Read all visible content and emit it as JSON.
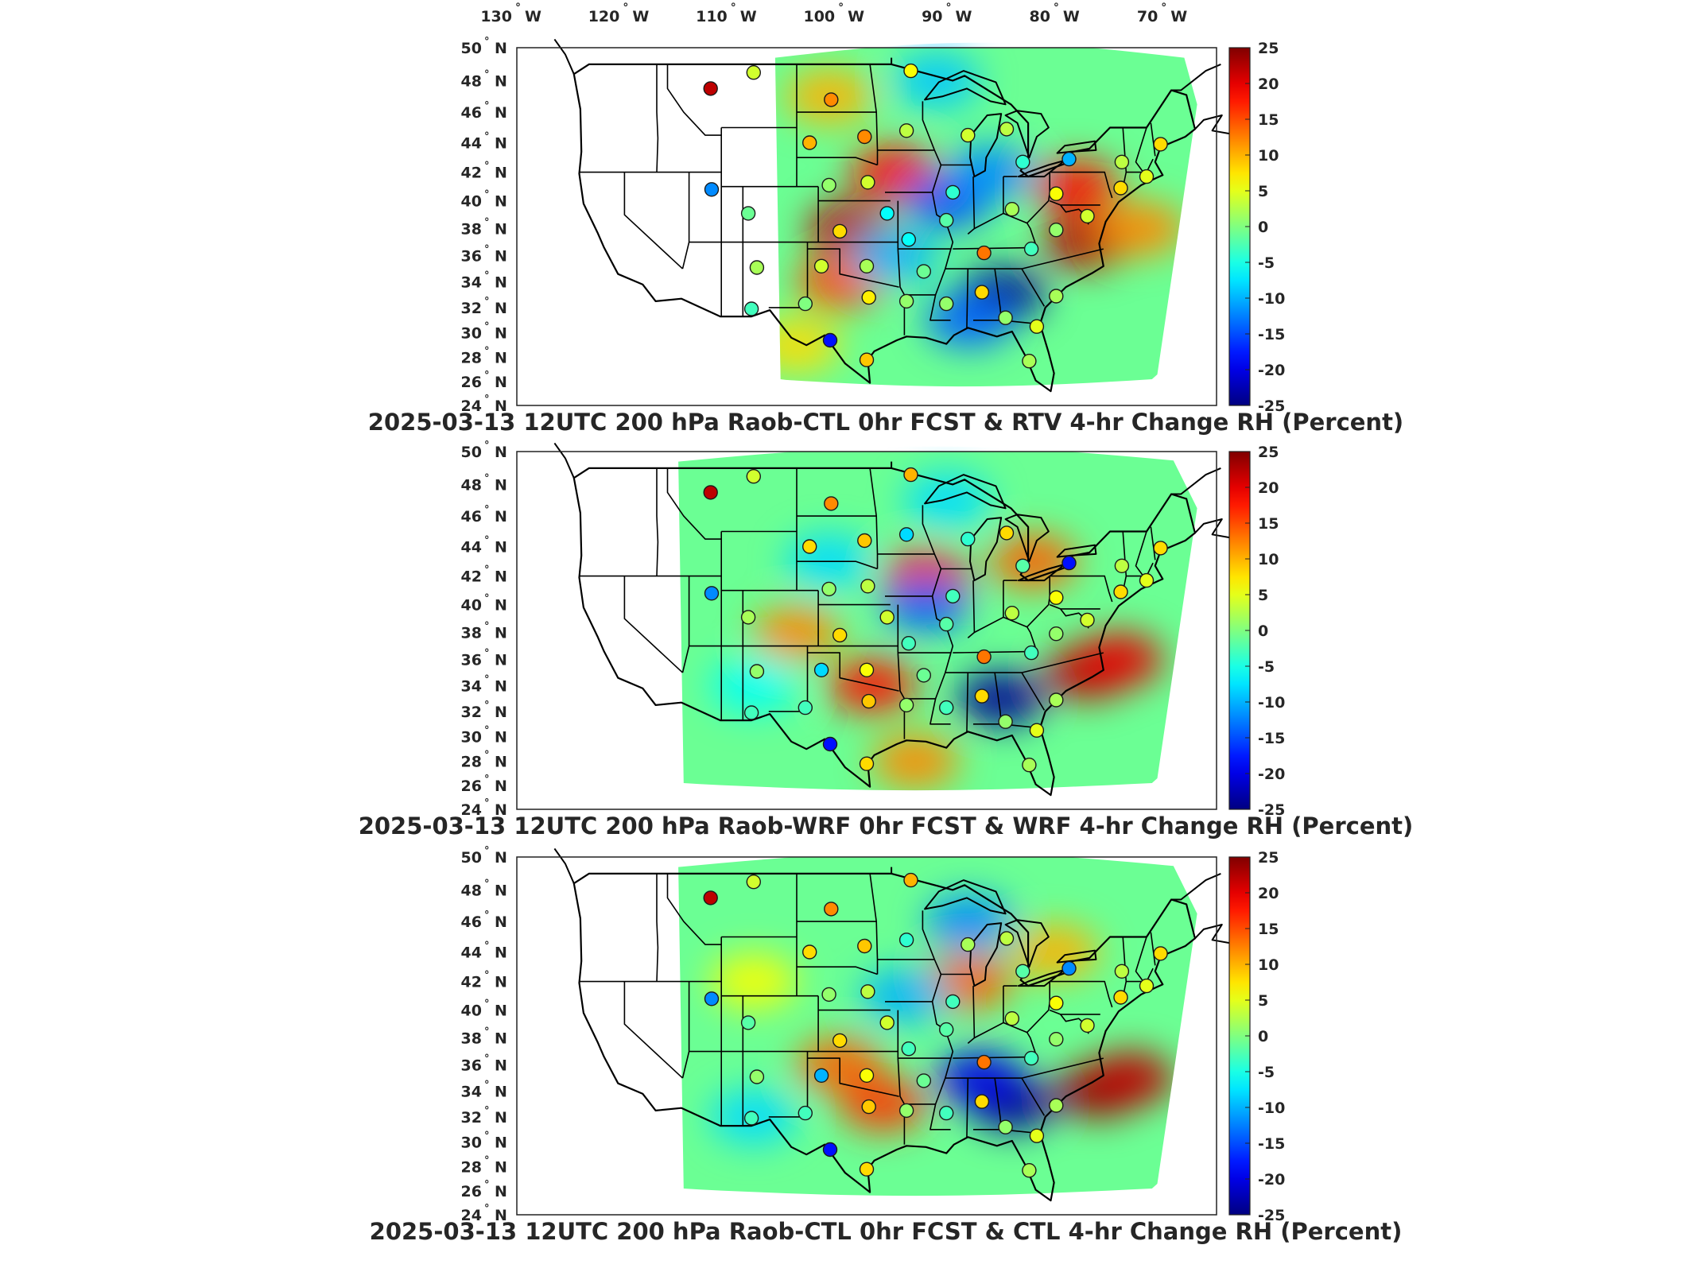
{
  "figure": {
    "lon_ticks": [
      "130",
      "120",
      "110",
      "100",
      "90",
      "80",
      "70"
    ],
    "lon_suffix": "W",
    "lat_ticks": [
      "50",
      "48",
      "46",
      "44",
      "42",
      "40",
      "38",
      "36",
      "34",
      "32",
      "30",
      "28",
      "26",
      "24"
    ],
    "lat_suffix": "N",
    "degree_symbol": "°",
    "colorbar": {
      "ticks": [
        "25",
        "20",
        "15",
        "10",
        "5",
        "0",
        "-5",
        "-10",
        "-15",
        "-20",
        "-25"
      ],
      "range": [
        -25,
        25
      ],
      "colormap": "jet"
    }
  },
  "chart_data": [
    {
      "type": "heatmap",
      "title": "2025-03-13 12UTC 200 hPa Raob-CTL 0hr FCST & RTV 4-hr Change RH (Percent)",
      "xlim": [
        -130,
        -65
      ],
      "ylim": [
        24,
        50
      ],
      "color_range": [
        -25,
        25
      ],
      "field_west_edge_lon": -106,
      "field": [
        {
          "lon": -99,
          "lat": 38,
          "value": 22
        },
        {
          "lon": -95,
          "lat": 42,
          "value": 18
        },
        {
          "lon": -100,
          "lat": 34,
          "value": 15
        },
        {
          "lon": -77,
          "lat": 37,
          "value": 22
        },
        {
          "lon": -78,
          "lat": 41,
          "value": 18
        },
        {
          "lon": -72,
          "lat": 38,
          "value": 12
        },
        {
          "lon": -101,
          "lat": 47,
          "value": 10
        },
        {
          "lon": -104,
          "lat": 29,
          "value": 8
        },
        {
          "lon": -85,
          "lat": 33,
          "value": -24
        },
        {
          "lon": -90,
          "lat": 40,
          "value": -15
        },
        {
          "lon": -86,
          "lat": 42,
          "value": -12
        },
        {
          "lon": -95,
          "lat": 36,
          "value": -10
        },
        {
          "lon": -91,
          "lat": 48,
          "value": -9
        },
        {
          "lon": -88,
          "lat": 31,
          "value": -14
        }
      ],
      "stations": [
        {
          "lon": -112,
          "lat": 47.5,
          "value": 22
        },
        {
          "lon": -108,
          "lat": 48.5,
          "value": 4
        },
        {
          "lon": -111.9,
          "lat": 40.8,
          "value": -12
        },
        {
          "lon": -108.5,
          "lat": 39.1,
          "value": -1
        },
        {
          "lon": -100.8,
          "lat": 46.8,
          "value": 12
        },
        {
          "lon": -97.7,
          "lat": 44.4,
          "value": 12
        },
        {
          "lon": -102.8,
          "lat": 44.0,
          "value": 10
        },
        {
          "lon": -101.0,
          "lat": 41.1,
          "value": 1
        },
        {
          "lon": -97.4,
          "lat": 41.3,
          "value": 4
        },
        {
          "lon": -100.0,
          "lat": 37.8,
          "value": 8
        },
        {
          "lon": -95.6,
          "lat": 39.1,
          "value": -6
        },
        {
          "lon": -107.7,
          "lat": 35.1,
          "value": 2
        },
        {
          "lon": -101.7,
          "lat": 35.2,
          "value": 4
        },
        {
          "lon": -97.5,
          "lat": 35.2,
          "value": 2
        },
        {
          "lon": -103.2,
          "lat": 32.3,
          "value": 0
        },
        {
          "lon": -108.2,
          "lat": 31.9,
          "value": -3
        },
        {
          "lon": -100.9,
          "lat": 29.4,
          "value": -18
        },
        {
          "lon": -97.5,
          "lat": 27.8,
          "value": 9
        },
        {
          "lon": -97.3,
          "lat": 32.8,
          "value": 7
        },
        {
          "lon": -93.8,
          "lat": 32.5,
          "value": 1
        },
        {
          "lon": -92.2,
          "lat": 34.8,
          "value": -1
        },
        {
          "lon": -93.6,
          "lat": 37.2,
          "value": -6
        },
        {
          "lon": -90.1,
          "lat": 38.6,
          "value": -2
        },
        {
          "lon": -89.5,
          "lat": 40.6,
          "value": -4
        },
        {
          "lon": -93.8,
          "lat": 44.8,
          "value": 3
        },
        {
          "lon": -93.4,
          "lat": 48.6,
          "value": 6
        },
        {
          "lon": -88.1,
          "lat": 44.5,
          "value": 4
        },
        {
          "lon": -84.5,
          "lat": 44.9,
          "value": 3
        },
        {
          "lon": -83.0,
          "lat": 42.7,
          "value": -4
        },
        {
          "lon": -84.0,
          "lat": 39.4,
          "value": 2
        },
        {
          "lon": -86.6,
          "lat": 36.2,
          "value": 13
        },
        {
          "lon": -82.2,
          "lat": 36.5,
          "value": -3
        },
        {
          "lon": -86.8,
          "lat": 33.2,
          "value": 8
        },
        {
          "lon": -90.1,
          "lat": 32.3,
          "value": 1
        },
        {
          "lon": -84.6,
          "lat": 31.2,
          "value": 1
        },
        {
          "lon": -81.7,
          "lat": 30.5,
          "value": 5
        },
        {
          "lon": -82.4,
          "lat": 27.7,
          "value": 2
        },
        {
          "lon": -79.9,
          "lat": 32.9,
          "value": 2
        },
        {
          "lon": -79.9,
          "lat": 37.9,
          "value": 1
        },
        {
          "lon": -77.0,
          "lat": 38.9,
          "value": 4
        },
        {
          "lon": -79.9,
          "lat": 40.5,
          "value": 6
        },
        {
          "lon": -78.7,
          "lat": 42.9,
          "value": -10
        },
        {
          "lon": -73.9,
          "lat": 40.9,
          "value": 8
        },
        {
          "lon": -73.8,
          "lat": 42.7,
          "value": 3
        },
        {
          "lon": -70.2,
          "lat": 43.9,
          "value": 8
        },
        {
          "lon": -71.5,
          "lat": 41.7,
          "value": 5
        }
      ]
    },
    {
      "type": "heatmap",
      "title": "2025-03-13 12UTC 200 hPa Raob-WRF 0hr FCST & WRF 4-hr Change RH (Percent)",
      "xlim": [
        -130,
        -65
      ],
      "ylim": [
        24,
        50
      ],
      "color_range": [
        -25,
        25
      ],
      "field_west_edge_lon": -115,
      "field": [
        {
          "lon": -104,
          "lat": 38,
          "value": 12
        },
        {
          "lon": -97,
          "lat": 34,
          "value": 18
        },
        {
          "lon": -92,
          "lat": 42,
          "value": 18
        },
        {
          "lon": -77,
          "lat": 35,
          "value": 22
        },
        {
          "lon": -74,
          "lat": 36,
          "value": 20
        },
        {
          "lon": -82,
          "lat": 43,
          "value": 14
        },
        {
          "lon": -93,
          "lat": 28,
          "value": 12
        },
        {
          "lon": -85,
          "lat": 33,
          "value": -24
        },
        {
          "lon": -92,
          "lat": 40,
          "value": -14
        },
        {
          "lon": -101,
          "lat": 43,
          "value": -8
        },
        {
          "lon": -90,
          "lat": 47,
          "value": -8
        },
        {
          "lon": -108,
          "lat": 34,
          "value": -6
        }
      ],
      "stations": [
        {
          "lon": -112,
          "lat": 47.5,
          "value": 22
        },
        {
          "lon": -108,
          "lat": 48.5,
          "value": 4
        },
        {
          "lon": -111.9,
          "lat": 40.8,
          "value": -12
        },
        {
          "lon": -108.5,
          "lat": 39.1,
          "value": 2
        },
        {
          "lon": -100.8,
          "lat": 46.8,
          "value": 12
        },
        {
          "lon": -97.7,
          "lat": 44.4,
          "value": 9
        },
        {
          "lon": -102.8,
          "lat": 44.0,
          "value": 8
        },
        {
          "lon": -101.0,
          "lat": 41.1,
          "value": 1
        },
        {
          "lon": -97.4,
          "lat": 41.3,
          "value": 3
        },
        {
          "lon": -100.0,
          "lat": 37.8,
          "value": 8
        },
        {
          "lon": -95.6,
          "lat": 39.1,
          "value": 4
        },
        {
          "lon": -107.7,
          "lat": 35.1,
          "value": 1
        },
        {
          "lon": -101.7,
          "lat": 35.2,
          "value": -8
        },
        {
          "lon": -97.5,
          "lat": 35.2,
          "value": 6
        },
        {
          "lon": -103.2,
          "lat": 32.3,
          "value": -3
        },
        {
          "lon": -108.2,
          "lat": 31.9,
          "value": -3
        },
        {
          "lon": -100.9,
          "lat": 29.4,
          "value": -18
        },
        {
          "lon": -97.5,
          "lat": 27.8,
          "value": 8
        },
        {
          "lon": -97.3,
          "lat": 32.8,
          "value": 9
        },
        {
          "lon": -93.8,
          "lat": 32.5,
          "value": 1
        },
        {
          "lon": -92.2,
          "lat": 34.8,
          "value": -1
        },
        {
          "lon": -93.6,
          "lat": 37.2,
          "value": -3
        },
        {
          "lon": -90.1,
          "lat": 38.6,
          "value": -2
        },
        {
          "lon": -89.5,
          "lat": 40.6,
          "value": -3
        },
        {
          "lon": -93.8,
          "lat": 44.8,
          "value": -8
        },
        {
          "lon": -93.4,
          "lat": 48.6,
          "value": 10
        },
        {
          "lon": -88.1,
          "lat": 44.5,
          "value": -4
        },
        {
          "lon": -84.5,
          "lat": 44.9,
          "value": 8
        },
        {
          "lon": -83.0,
          "lat": 42.7,
          "value": -2
        },
        {
          "lon": -84.0,
          "lat": 39.4,
          "value": 3
        },
        {
          "lon": -86.6,
          "lat": 36.2,
          "value": 13
        },
        {
          "lon": -82.2,
          "lat": 36.5,
          "value": -3
        },
        {
          "lon": -86.8,
          "lat": 33.2,
          "value": 8
        },
        {
          "lon": -90.1,
          "lat": 32.3,
          "value": -3
        },
        {
          "lon": -84.6,
          "lat": 31.2,
          "value": 1
        },
        {
          "lon": -81.7,
          "lat": 30.5,
          "value": 5
        },
        {
          "lon": -82.4,
          "lat": 27.7,
          "value": 2
        },
        {
          "lon": -79.9,
          "lat": 32.9,
          "value": 2
        },
        {
          "lon": -79.9,
          "lat": 37.9,
          "value": 1
        },
        {
          "lon": -77.0,
          "lat": 38.9,
          "value": 4
        },
        {
          "lon": -79.9,
          "lat": 40.5,
          "value": 6
        },
        {
          "lon": -78.7,
          "lat": 42.9,
          "value": -18
        },
        {
          "lon": -73.9,
          "lat": 40.9,
          "value": 8
        },
        {
          "lon": -73.8,
          "lat": 42.7,
          "value": 3
        },
        {
          "lon": -70.2,
          "lat": 43.9,
          "value": 8
        },
        {
          "lon": -71.5,
          "lat": 41.7,
          "value": 5
        }
      ]
    },
    {
      "type": "heatmap",
      "title": "2025-03-13 12UTC 200 hPa Raob-CTL 0hr FCST & CTL 4-hr Change RH (Percent)",
      "xlim": [
        -130,
        -65
      ],
      "ylim": [
        24,
        50
      ],
      "color_range": [
        -25,
        25
      ],
      "field_west_edge_lon": -115,
      "field": [
        {
          "lon": -100,
          "lat": 36,
          "value": 14
        },
        {
          "lon": -96,
          "lat": 33,
          "value": 16
        },
        {
          "lon": -88,
          "lat": 42,
          "value": 14
        },
        {
          "lon": -76,
          "lat": 34,
          "value": 24
        },
        {
          "lon": -73,
          "lat": 35,
          "value": 22
        },
        {
          "lon": -80,
          "lat": 44,
          "value": 10
        },
        {
          "lon": -84,
          "lat": 33,
          "value": -24
        },
        {
          "lon": -87,
          "lat": 35,
          "value": -20
        },
        {
          "lon": -94,
          "lat": 41,
          "value": -10
        },
        {
          "lon": -88,
          "lat": 46,
          "value": -12
        },
        {
          "lon": -108,
          "lat": 32,
          "value": -8
        },
        {
          "lon": -108,
          "lat": 42,
          "value": 6
        }
      ],
      "stations": [
        {
          "lon": -112,
          "lat": 47.5,
          "value": 22
        },
        {
          "lon": -108,
          "lat": 48.5,
          "value": 4
        },
        {
          "lon": -111.9,
          "lat": 40.8,
          "value": -12
        },
        {
          "lon": -108.5,
          "lat": 39.1,
          "value": -2
        },
        {
          "lon": -100.8,
          "lat": 46.8,
          "value": 12
        },
        {
          "lon": -97.7,
          "lat": 44.4,
          "value": 9
        },
        {
          "lon": -102.8,
          "lat": 44.0,
          "value": 8
        },
        {
          "lon": -101.0,
          "lat": 41.1,
          "value": 1
        },
        {
          "lon": -97.4,
          "lat": 41.3,
          "value": 3
        },
        {
          "lon": -100.0,
          "lat": 37.8,
          "value": 8
        },
        {
          "lon": -95.6,
          "lat": 39.1,
          "value": 4
        },
        {
          "lon": -107.7,
          "lat": 35.1,
          "value": 1
        },
        {
          "lon": -101.7,
          "lat": 35.2,
          "value": -10
        },
        {
          "lon": -97.5,
          "lat": 35.2,
          "value": 6
        },
        {
          "lon": -103.2,
          "lat": 32.3,
          "value": -3
        },
        {
          "lon": -108.2,
          "lat": 31.9,
          "value": -3
        },
        {
          "lon": -100.9,
          "lat": 29.4,
          "value": -18
        },
        {
          "lon": -97.5,
          "lat": 27.8,
          "value": 8
        },
        {
          "lon": -97.3,
          "lat": 32.8,
          "value": 9
        },
        {
          "lon": -93.8,
          "lat": 32.5,
          "value": 1
        },
        {
          "lon": -92.2,
          "lat": 34.8,
          "value": -1
        },
        {
          "lon": -93.6,
          "lat": 37.2,
          "value": -3
        },
        {
          "lon": -90.1,
          "lat": 38.6,
          "value": -2
        },
        {
          "lon": -89.5,
          "lat": 40.6,
          "value": -3
        },
        {
          "lon": -93.8,
          "lat": 44.8,
          "value": -4
        },
        {
          "lon": -93.4,
          "lat": 48.6,
          "value": 10
        },
        {
          "lon": -88.1,
          "lat": 44.5,
          "value": 2
        },
        {
          "lon": -84.5,
          "lat": 44.9,
          "value": 3
        },
        {
          "lon": -83.0,
          "lat": 42.7,
          "value": -2
        },
        {
          "lon": -84.0,
          "lat": 39.4,
          "value": 3
        },
        {
          "lon": -86.6,
          "lat": 36.2,
          "value": 13
        },
        {
          "lon": -82.2,
          "lat": 36.5,
          "value": -3
        },
        {
          "lon": -86.8,
          "lat": 33.2,
          "value": 8
        },
        {
          "lon": -90.1,
          "lat": 32.3,
          "value": -3
        },
        {
          "lon": -84.6,
          "lat": 31.2,
          "value": 1
        },
        {
          "lon": -81.7,
          "lat": 30.5,
          "value": 5
        },
        {
          "lon": -82.4,
          "lat": 27.7,
          "value": 2
        },
        {
          "lon": -79.9,
          "lat": 32.9,
          "value": 2
        },
        {
          "lon": -79.9,
          "lat": 37.9,
          "value": 1
        },
        {
          "lon": -77.0,
          "lat": 38.9,
          "value": 4
        },
        {
          "lon": -79.9,
          "lat": 40.5,
          "value": 6
        },
        {
          "lon": -78.7,
          "lat": 42.9,
          "value": -12
        },
        {
          "lon": -73.9,
          "lat": 40.9,
          "value": 8
        },
        {
          "lon": -73.8,
          "lat": 42.7,
          "value": 3
        },
        {
          "lon": -70.2,
          "lat": 43.9,
          "value": 8
        },
        {
          "lon": -71.5,
          "lat": 41.7,
          "value": 5
        }
      ]
    }
  ]
}
